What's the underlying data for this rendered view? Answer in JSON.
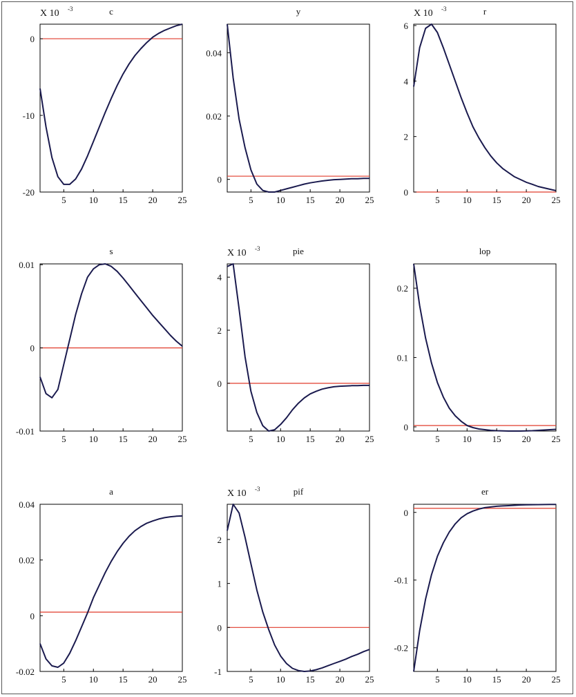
{
  "colors": {
    "series": "#1a1a4e",
    "zero_line": "#e03a2a",
    "axes": "#000000"
  },
  "chart_data": [
    {
      "type": "line",
      "title": "c",
      "multiplier": "X 10",
      "multiplier_exp": "-3",
      "xlim": [
        1,
        25
      ],
      "ylim": [
        -20,
        1.9
      ],
      "xticks": [
        5,
        10,
        15,
        20,
        25
      ],
      "yticks": [
        0,
        -10,
        -20
      ],
      "x": [
        1,
        2,
        3,
        4,
        5,
        6,
        7,
        8,
        9,
        10,
        11,
        12,
        13,
        14,
        15,
        16,
        17,
        18,
        19,
        20,
        21,
        22,
        23,
        24,
        25
      ],
      "series": [
        {
          "values": [
            -6.5,
            -11.5,
            -15.5,
            -18,
            -19,
            -19,
            -18.3,
            -17,
            -15.3,
            -13.4,
            -11.5,
            -9.6,
            -7.8,
            -6.1,
            -4.6,
            -3.3,
            -2.2,
            -1.3,
            -0.5,
            0.2,
            0.7,
            1.1,
            1.4,
            1.7,
            1.9
          ]
        }
      ],
      "zero_line": 0
    },
    {
      "type": "line",
      "title": "y",
      "multiplier": "",
      "multiplier_exp": "",
      "xlim": [
        1,
        25
      ],
      "ylim": [
        -0.004,
        0.049
      ],
      "xticks": [
        5,
        10,
        15,
        20,
        25
      ],
      "yticks": [
        0,
        0.02,
        0.04
      ],
      "x": [
        1,
        2,
        3,
        4,
        5,
        6,
        7,
        8,
        9,
        10,
        11,
        12,
        13,
        14,
        15,
        16,
        17,
        18,
        19,
        20,
        21,
        22,
        23,
        24,
        25
      ],
      "series": [
        {
          "values": [
            0.049,
            0.032,
            0.019,
            0.01,
            0.003,
            -0.0015,
            -0.0035,
            -0.004,
            -0.004,
            -0.0035,
            -0.003,
            -0.0025,
            -0.002,
            -0.0015,
            -0.0011,
            -0.0008,
            -0.0005,
            -0.0003,
            -0.0001,
            0,
            0.0001,
            0.0002,
            0.0002,
            0.0003,
            0.0003
          ]
        }
      ],
      "zero_line": 0.001
    },
    {
      "type": "line",
      "title": "r",
      "multiplier": "X 10",
      "multiplier_exp": "-3",
      "xlim": [
        1,
        25
      ],
      "ylim": [
        0,
        6.05
      ],
      "xticks": [
        5,
        10,
        15,
        20,
        25
      ],
      "yticks": [
        0,
        2,
        4,
        6
      ],
      "x": [
        1,
        2,
        3,
        4,
        5,
        6,
        7,
        8,
        9,
        10,
        11,
        12,
        13,
        14,
        15,
        16,
        17,
        18,
        19,
        20,
        21,
        22,
        23,
        24,
        25
      ],
      "series": [
        {
          "values": [
            3.8,
            5.2,
            5.9,
            6.05,
            5.75,
            5.2,
            4.6,
            4,
            3.4,
            2.85,
            2.35,
            1.95,
            1.6,
            1.3,
            1.05,
            0.85,
            0.7,
            0.55,
            0.45,
            0.35,
            0.28,
            0.2,
            0.15,
            0.1,
            0.05
          ]
        }
      ],
      "zero_line": 0
    },
    {
      "type": "line",
      "title": "s",
      "multiplier": "",
      "multiplier_exp": "",
      "xlim": [
        1,
        25
      ],
      "ylim": [
        -0.01,
        0.0101
      ],
      "xticks": [
        5,
        10,
        15,
        20,
        25
      ],
      "yticks": [
        0.01,
        0,
        -0.01
      ],
      "x": [
        1,
        2,
        3,
        4,
        5,
        6,
        7,
        8,
        9,
        10,
        11,
        12,
        13,
        14,
        15,
        16,
        17,
        18,
        19,
        20,
        21,
        22,
        23,
        24,
        25
      ],
      "series": [
        {
          "values": [
            -0.0035,
            -0.0055,
            -0.006,
            -0.005,
            -0.002,
            0.001,
            0.004,
            0.0065,
            0.0085,
            0.0095,
            0.01,
            0.0101,
            0.0098,
            0.0092,
            0.0084,
            0.0075,
            0.0066,
            0.0057,
            0.0048,
            0.0039,
            0.0031,
            0.0023,
            0.0015,
            0.0008,
            0.0002
          ]
        }
      ],
      "zero_line": 0
    },
    {
      "type": "line",
      "title": "pie",
      "multiplier": "X 10",
      "multiplier_exp": "-3",
      "xlim": [
        1,
        25
      ],
      "ylim": [
        -1.8,
        4.5
      ],
      "xticks": [
        5,
        10,
        15,
        20,
        25
      ],
      "yticks": [
        4,
        2,
        0
      ],
      "x": [
        1,
        2,
        3,
        4,
        5,
        6,
        7,
        8,
        9,
        10,
        11,
        12,
        13,
        14,
        15,
        16,
        17,
        18,
        19,
        20,
        21,
        22,
        23,
        24,
        25
      ],
      "series": [
        {
          "values": [
            4.4,
            4.5,
            2.8,
            1,
            -0.3,
            -1.1,
            -1.6,
            -1.8,
            -1.75,
            -1.55,
            -1.3,
            -1,
            -0.75,
            -0.55,
            -0.4,
            -0.3,
            -0.22,
            -0.17,
            -0.13,
            -0.11,
            -0.1,
            -0.09,
            -0.09,
            -0.08,
            -0.08
          ]
        }
      ],
      "zero_line": 0
    },
    {
      "type": "line",
      "title": "lop",
      "multiplier": "",
      "multiplier_exp": "",
      "xlim": [
        1,
        25
      ],
      "ylim": [
        -0.006,
        0.235
      ],
      "xticks": [
        5,
        10,
        15,
        20,
        25
      ],
      "yticks": [
        0,
        0.1,
        0.2
      ],
      "x": [
        1,
        2,
        3,
        4,
        5,
        6,
        7,
        8,
        9,
        10,
        11,
        12,
        13,
        14,
        15,
        16,
        17,
        18,
        19,
        20,
        21,
        22,
        23,
        24,
        25
      ],
      "series": [
        {
          "values": [
            0.235,
            0.175,
            0.128,
            0.092,
            0.064,
            0.043,
            0.027,
            0.016,
            0.008,
            0.002,
            -0.001,
            -0.003,
            -0.004,
            -0.005,
            -0.0055,
            -0.0058,
            -0.006,
            -0.006,
            -0.006,
            -0.0058,
            -0.0055,
            -0.005,
            -0.0045,
            -0.004,
            -0.0035
          ]
        }
      ],
      "zero_line": 0.002
    },
    {
      "type": "line",
      "title": "a",
      "multiplier": "",
      "multiplier_exp": "",
      "xlim": [
        1,
        25
      ],
      "ylim": [
        -0.02,
        0.04
      ],
      "xticks": [
        5,
        10,
        15,
        20,
        25
      ],
      "yticks": [
        0.04,
        0.02,
        0,
        -0.02
      ],
      "x": [
        1,
        2,
        3,
        4,
        5,
        6,
        7,
        8,
        9,
        10,
        11,
        12,
        13,
        14,
        15,
        16,
        17,
        18,
        19,
        20,
        21,
        22,
        23,
        24,
        25
      ],
      "series": [
        {
          "values": [
            -0.01,
            -0.0155,
            -0.018,
            -0.0185,
            -0.017,
            -0.0135,
            -0.009,
            -0.004,
            0.001,
            0.0065,
            0.011,
            0.0155,
            0.0195,
            0.023,
            0.026,
            0.0285,
            0.0305,
            0.032,
            0.0332,
            0.034,
            0.0347,
            0.0352,
            0.0355,
            0.0357,
            0.0358
          ]
        }
      ],
      "zero_line": 0.0013
    },
    {
      "type": "line",
      "title": "pif",
      "multiplier": "X 10",
      "multiplier_exp": "-3",
      "xlim": [
        1,
        25
      ],
      "ylim": [
        -1,
        2.8
      ],
      "xticks": [
        5,
        10,
        15,
        20,
        25
      ],
      "yticks": [
        2,
        1,
        0,
        -1
      ],
      "x": [
        1,
        2,
        3,
        4,
        5,
        6,
        7,
        8,
        9,
        10,
        11,
        12,
        13,
        14,
        15,
        16,
        17,
        18,
        19,
        20,
        21,
        22,
        23,
        24,
        25
      ],
      "series": [
        {
          "values": [
            2.2,
            2.8,
            2.6,
            2.05,
            1.45,
            0.85,
            0.35,
            -0.05,
            -0.4,
            -0.65,
            -0.82,
            -0.93,
            -0.98,
            -1,
            -0.99,
            -0.96,
            -0.92,
            -0.87,
            -0.82,
            -0.77,
            -0.72,
            -0.66,
            -0.61,
            -0.55,
            -0.5
          ]
        }
      ],
      "zero_line": 0
    },
    {
      "type": "line",
      "title": "er",
      "multiplier": "",
      "multiplier_exp": "",
      "xlim": [
        1,
        25
      ],
      "ylim": [
        -0.235,
        0.012
      ],
      "xticks": [
        5,
        10,
        15,
        20,
        25
      ],
      "yticks": [
        0,
        -0.1,
        -0.2
      ],
      "x": [
        1,
        2,
        3,
        4,
        5,
        6,
        7,
        8,
        9,
        10,
        11,
        12,
        13,
        14,
        15,
        16,
        17,
        18,
        19,
        20,
        21,
        22,
        23,
        24,
        25
      ],
      "series": [
        {
          "values": [
            -0.235,
            -0.175,
            -0.128,
            -0.092,
            -0.065,
            -0.045,
            -0.029,
            -0.017,
            -0.008,
            -0.002,
            0.002,
            0.005,
            0.007,
            0.008,
            0.009,
            0.0095,
            0.01,
            0.0105,
            0.011,
            0.0112,
            0.0114,
            0.0115,
            0.0116,
            0.0117,
            0.0118
          ]
        }
      ],
      "zero_line": 0.006
    }
  ]
}
